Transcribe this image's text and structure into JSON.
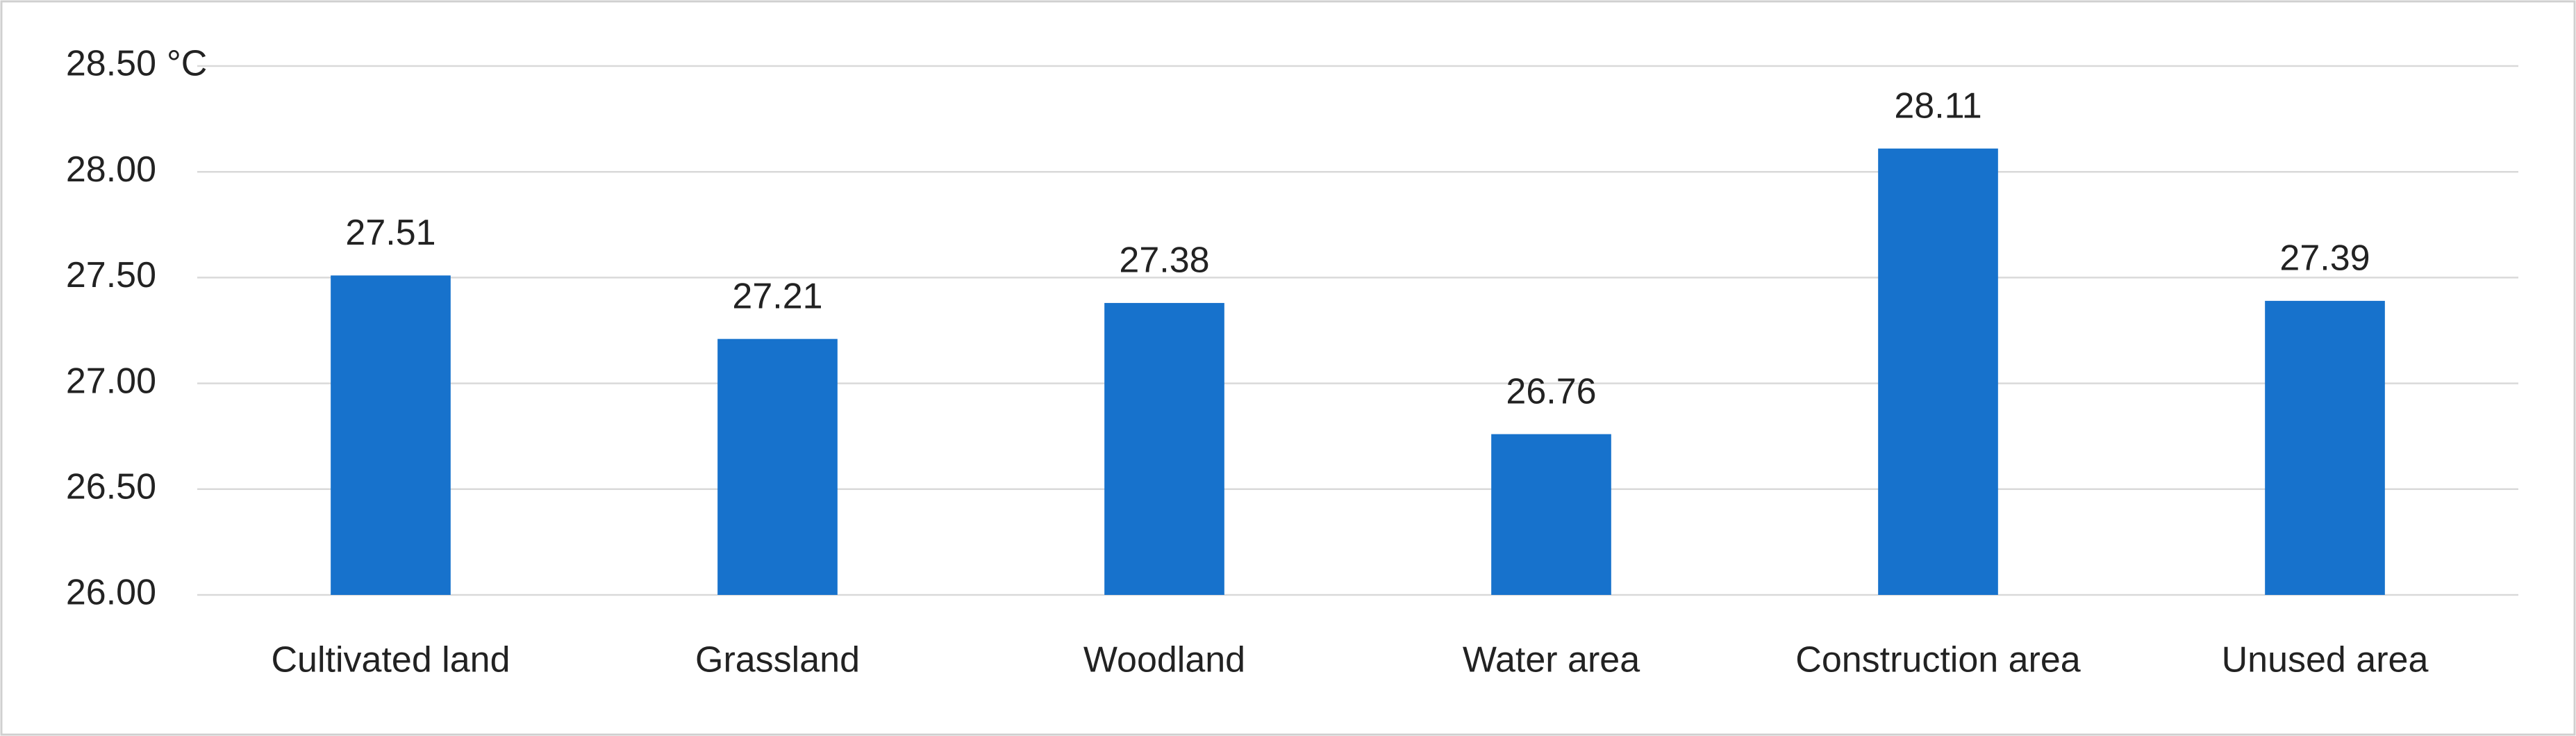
{
  "chart_data": {
    "type": "bar",
    "unit_label": "°C",
    "categories": [
      "Cultivated land",
      "Grassland",
      "Woodland",
      "Water area",
      "Construction area",
      "Unused area"
    ],
    "values": [
      27.51,
      27.21,
      27.38,
      26.76,
      28.11,
      27.39
    ],
    "color": "#1772cc",
    "ylim": [
      26,
      28.5
    ],
    "yticks": [
      {
        "value": 26,
        "label": "26.00"
      },
      {
        "value": 26.5,
        "label": "26.50"
      },
      {
        "value": 27,
        "label": "27.00"
      },
      {
        "value": 27.5,
        "label": "27.50"
      },
      {
        "value": 28,
        "label": "28.00"
      },
      {
        "value": 28.5,
        "label": "28.50"
      }
    ],
    "grid": true
  }
}
